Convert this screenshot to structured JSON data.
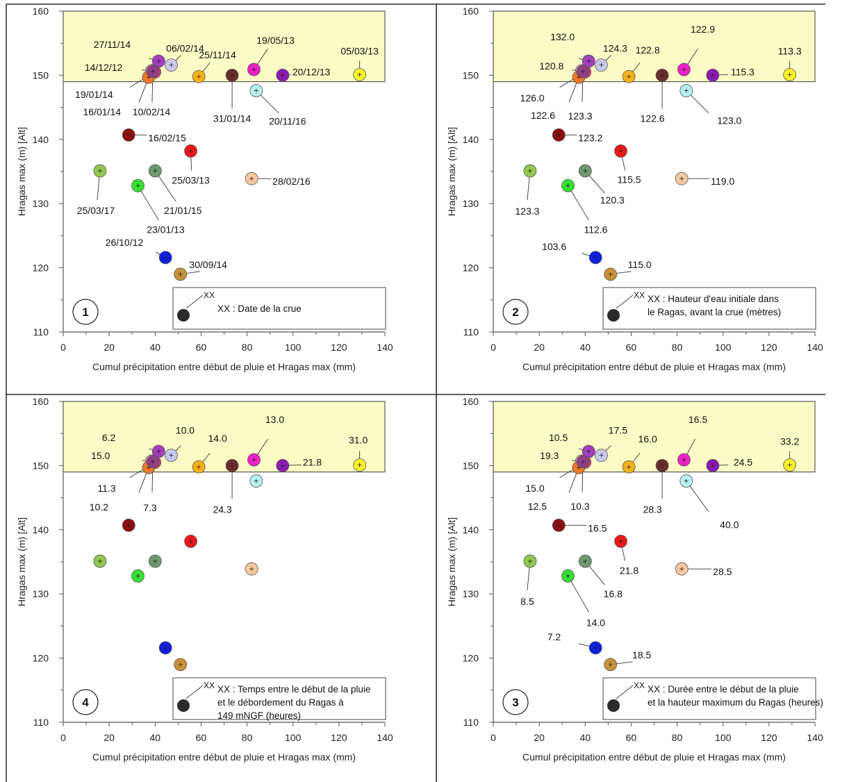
{
  "chart_data": [
    {
      "type": "scatter",
      "panel": "1",
      "xlabel": "Cumul précipitation entre début de pluie et Hragas max (mm)",
      "ylabel": "Hragas max (m) [Alt]",
      "xlim": [
        0,
        140
      ],
      "ylim": [
        110,
        160
      ],
      "xticks": [
        "0",
        "20",
        "40",
        "60",
        "80",
        "100",
        "120",
        "140"
      ],
      "yticks": [
        "110",
        "120",
        "130",
        "140",
        "150",
        "160"
      ],
      "highlight_band": [
        149,
        160
      ],
      "legend": {
        "xx": "XX",
        "text": [
          "XX : Date de la crue"
        ]
      },
      "labels": [
        "27/11/14",
        "06/02/14",
        "14/12/12",
        "19/01/14",
        "16/01/14",
        "10/02/14",
        "25/11/14",
        "31/01/14",
        "19/05/13",
        "20/11/16",
        "20/12/13",
        "05/03/13",
        "16/02/15",
        "25/03/13",
        "21/01/15",
        "23/01/13",
        "25/03/17",
        "28/02/16",
        "26/10/12",
        "30/09/14"
      ]
    },
    {
      "type": "scatter",
      "panel": "2",
      "xlabel": "Cumul précipitation entre début de pluie et Hragas max (mm)",
      "ylabel": "Hragas max (m) [Alt]",
      "xlim": [
        0,
        140
      ],
      "ylim": [
        110,
        160
      ],
      "xticks": [
        "0",
        "20",
        "40",
        "60",
        "80",
        "100",
        "120",
        "140"
      ],
      "yticks": [
        "110",
        "120",
        "130",
        "140",
        "150",
        "160"
      ],
      "highlight_band": [
        149,
        160
      ],
      "legend": {
        "xx": "XX",
        "text": [
          "XX : Hauteur d'eau initiale dans",
          "le Ragas, avant la crue (mètres)"
        ]
      },
      "labels": [
        "132.0",
        "124.3",
        "120.8",
        "126.0",
        "122.6",
        "123.3",
        "122.8",
        "122.6",
        "122.9",
        "123.0",
        "115.3",
        "113.3",
        "123.2",
        "115.5",
        "120.3",
        "112.6",
        "123.3",
        "119.0",
        "103.6",
        "115.0"
      ]
    },
    {
      "type": "scatter",
      "panel": "4",
      "xlabel": "Cumul précipitation entre début de pluie et Hragas max (mm)",
      "ylabel": "Hragas max (m) [Alt]",
      "xlim": [
        0,
        140
      ],
      "ylim": [
        110,
        160
      ],
      "xticks": [
        "0",
        "20",
        "40",
        "60",
        "80",
        "100",
        "120",
        "140"
      ],
      "yticks": [
        "110",
        "120",
        "130",
        "140",
        "150",
        "160"
      ],
      "highlight_band": [
        149,
        160
      ],
      "legend": {
        "xx": "XX",
        "text": [
          "XX : Temps entre le début de la pluie",
          "et le débordement du Ragas à",
          "149 mNGF (heures)"
        ]
      },
      "labels": [
        "6.2",
        "10.0",
        "15.0",
        "11.3",
        "10.2",
        "7.3",
        "14.0",
        "24.3",
        "13.0",
        "",
        "21.8",
        "31.0",
        "",
        "",
        "",
        "",
        "",
        "",
        "",
        ""
      ]
    },
    {
      "type": "scatter",
      "panel": "3",
      "xlabel": "Cumul précipitation entre début de pluie et Hragas max (mm)",
      "ylabel": "Hragas max (m) [Alt]",
      "xlim": [
        0,
        140
      ],
      "ylim": [
        110,
        160
      ],
      "xticks": [
        "0",
        "20",
        "40",
        "60",
        "80",
        "100",
        "120",
        "140"
      ],
      "yticks": [
        "110",
        "120",
        "130",
        "140",
        "150",
        "160"
      ],
      "highlight_band": [
        149,
        160
      ],
      "legend": {
        "xx": "XX",
        "text": [
          "XX : Durée entre le début de la pluie",
          "et la hauteur maximum du Ragas (heures)"
        ]
      },
      "labels": [
        "10.5",
        "17.5",
        "19.3",
        "15.0",
        "12.5",
        "10.3",
        "16.0",
        "28.3",
        "16.5",
        "40.0",
        "24.5",
        "33.2",
        "16.5",
        "21.8",
        "16.8",
        "14.0",
        "8.5",
        "28.5",
        "7.2",
        "18.5"
      ]
    }
  ],
  "points": [
    {
      "x": 41.5,
      "y": 152.2,
      "color": "#a33ec0"
    },
    {
      "x": 47.0,
      "y": 151.6,
      "color": "#c8c8ef"
    },
    {
      "x": 38.5,
      "y": 150.7,
      "color": "#f0b9c9"
    },
    {
      "x": 39.8,
      "y": 150.5,
      "color": "#e03a62"
    },
    {
      "x": 37.2,
      "y": 149.7,
      "color": "#f07828"
    },
    {
      "x": 39.0,
      "y": 150.6,
      "color": "#8f3f86"
    },
    {
      "x": 59.0,
      "y": 149.8,
      "color": "#f5b019"
    },
    {
      "x": 73.5,
      "y": 150.0,
      "color": "#6b2c2c"
    },
    {
      "x": 83.0,
      "y": 150.9,
      "color": "#f020c8"
    },
    {
      "x": 84.0,
      "y": 147.6,
      "color": "#b6f0f0"
    },
    {
      "x": 95.5,
      "y": 150.0,
      "color": "#8a1ab0"
    },
    {
      "x": 129.0,
      "y": 150.1,
      "color": "#f8f028"
    },
    {
      "x": 28.5,
      "y": 140.7,
      "color": "#8c0e0e"
    },
    {
      "x": 55.5,
      "y": 138.2,
      "color": "#ec1818"
    },
    {
      "x": 40.0,
      "y": 135.1,
      "color": "#6e9a6e"
    },
    {
      "x": 32.5,
      "y": 132.8,
      "color": "#34e034"
    },
    {
      "x": 16.0,
      "y": 135.1,
      "color": "#92c852"
    },
    {
      "x": 82.0,
      "y": 133.9,
      "color": "#f5c8a0"
    },
    {
      "x": 44.5,
      "y": 121.6,
      "color": "#0f1ee0"
    },
    {
      "x": 51.0,
      "y": 119.0,
      "color": "#c8923a"
    }
  ],
  "colors": {
    "band_fill": "#fbfbc6",
    "legend_marker": "#2b2b2b",
    "axis": "#555555"
  }
}
